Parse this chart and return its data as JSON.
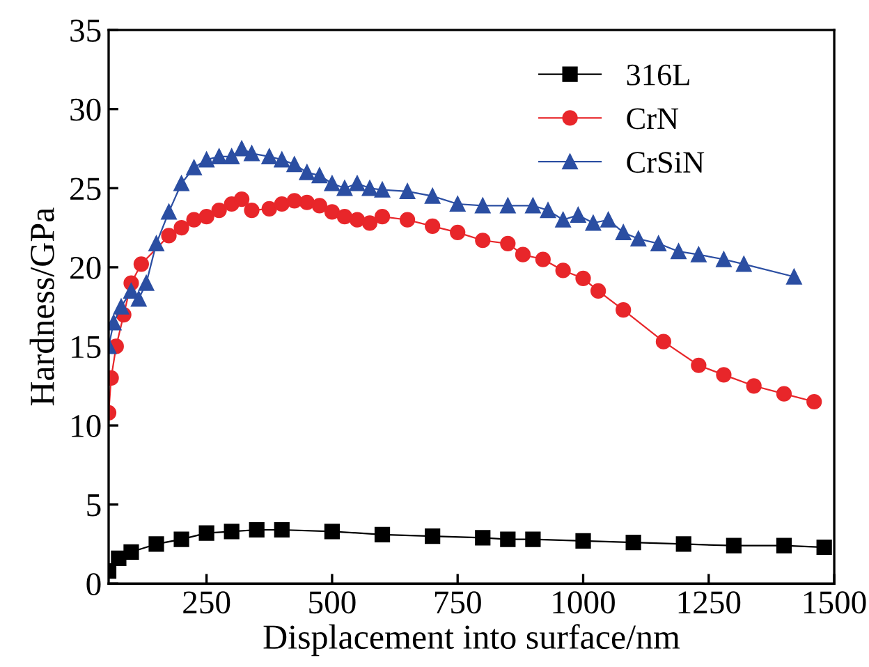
{
  "chart_data": {
    "type": "line",
    "xlabel": "Displacement into surface/nm",
    "ylabel": "Hardness/GPa",
    "xlim": [
      55,
      1500
    ],
    "xticks": [
      250,
      500,
      750,
      1000,
      1250,
      1500
    ],
    "ylim": [
      0,
      35
    ],
    "yticks": [
      0,
      5,
      10,
      15,
      20,
      25,
      30,
      35
    ],
    "grid": false,
    "legend": "top right",
    "line_style": "solid",
    "series": [
      {
        "name": "316L",
        "color": "#000000",
        "marker": "square",
        "x": [
          55,
          75,
          100,
          150,
          200,
          250,
          300,
          350,
          400,
          500,
          600,
          700,
          800,
          850,
          900,
          1000,
          1100,
          1200,
          1300,
          1400,
          1480
        ],
        "values": [
          0.8,
          1.6,
          2,
          2.5,
          2.8,
          3.2,
          3.3,
          3.4,
          3.4,
          3.3,
          3.1,
          3,
          2.9,
          2.8,
          2.8,
          2.7,
          2.6,
          2.5,
          2.4,
          2.4,
          2.3
        ]
      },
      {
        "name": "CrN",
        "color": "#e8262a",
        "marker": "circle",
        "x": [
          55,
          60,
          70,
          85,
          100,
          120,
          175,
          200,
          225,
          250,
          275,
          300,
          320,
          340,
          375,
          400,
          425,
          450,
          475,
          500,
          525,
          550,
          575,
          600,
          650,
          700,
          750,
          800,
          850,
          880,
          920,
          960,
          1000,
          1030,
          1080,
          1160,
          1230,
          1280,
          1340,
          1400,
          1460
        ],
        "values": [
          10.8,
          13,
          15,
          17,
          19,
          20.2,
          22,
          22.5,
          23,
          23.2,
          23.6,
          24,
          24.3,
          23.6,
          23.7,
          24,
          24.2,
          24.1,
          23.9,
          23.5,
          23.2,
          23,
          22.8,
          23.2,
          23,
          22.6,
          22.2,
          21.7,
          21.5,
          20.8,
          20.5,
          19.8,
          19.3,
          18.5,
          17.3,
          15.3,
          13.8,
          13.2,
          12.5,
          12,
          11.5
        ]
      },
      {
        "name": "CrSiN",
        "color": "#2b4ea2",
        "marker": "triangle",
        "x": [
          55,
          65,
          80,
          100,
          115,
          130,
          150,
          175,
          200,
          225,
          250,
          275,
          300,
          320,
          340,
          375,
          400,
          425,
          450,
          475,
          500,
          525,
          550,
          575,
          600,
          650,
          700,
          750,
          800,
          850,
          900,
          930,
          960,
          990,
          1020,
          1050,
          1080,
          1110,
          1150,
          1190,
          1230,
          1280,
          1320,
          1420
        ],
        "values": [
          15,
          16.5,
          17.5,
          18.5,
          18,
          19,
          21.5,
          23.5,
          25.3,
          26.3,
          26.8,
          27,
          27,
          27.5,
          27.2,
          27,
          26.8,
          26.5,
          26,
          25.8,
          25.3,
          25,
          25.3,
          25,
          24.9,
          24.8,
          24.5,
          24,
          23.9,
          23.9,
          23.9,
          23.6,
          23,
          23.3,
          22.8,
          23,
          22.2,
          21.8,
          21.5,
          21,
          20.8,
          20.5,
          20.2,
          19.4
        ]
      }
    ]
  }
}
